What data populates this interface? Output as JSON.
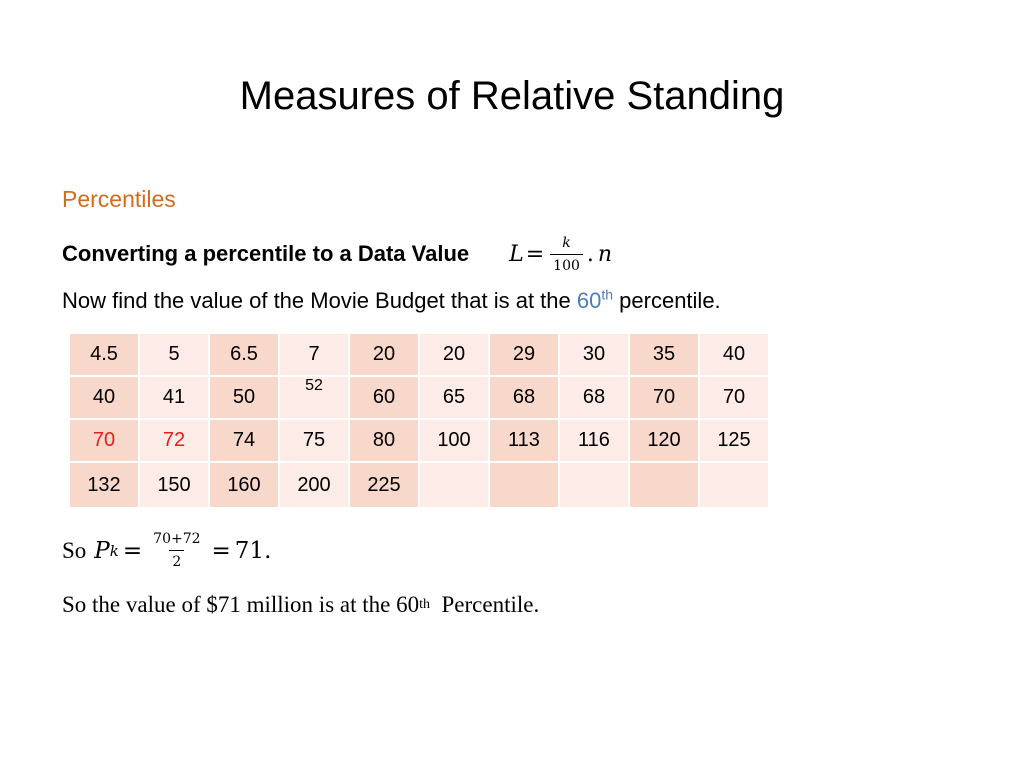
{
  "slide": {
    "title": "Measures of Relative Standing",
    "subtitle": "Percentiles",
    "heading": "Converting a percentile to a Data Value",
    "formula": {
      "lhs": "L",
      "eq": "=",
      "numerator": "k",
      "denominator": "100",
      "dot": ".",
      "var": "n"
    },
    "question": {
      "before": "Now find the value of the Movie Budget that is at the ",
      "percent": "60",
      "sup": "th",
      "after": " percentile."
    },
    "colors": {
      "subtitle": "#d46a20",
      "accent": "#4a7ebb",
      "highlight_red": "#e02020",
      "cell_dark": "#f9d8cc",
      "cell_light": "#fcebe6"
    },
    "table": {
      "rows": [
        [
          "4.5",
          "5",
          "6.5",
          "7",
          "20",
          "20",
          "29",
          "30",
          "35",
          "40"
        ],
        [
          "40",
          "41",
          "50",
          "52",
          "60",
          "65",
          "68",
          "68",
          "70",
          "70"
        ],
        [
          "70",
          "72",
          "74",
          "75",
          "80",
          "100",
          "113",
          "116",
          "120",
          "125"
        ],
        [
          "132",
          "150",
          "160",
          "200",
          "225",
          "",
          "",
          "",
          "",
          ""
        ]
      ]
    },
    "result": {
      "so": "So",
      "p": "P",
      "sub": "k",
      "eq": "=",
      "numerator": "70+72",
      "denominator": "2",
      "eq2": "=",
      "value": "71."
    },
    "conclusion": {
      "before": "So the value of $71 million is at the 60",
      "sup": "th",
      "after": "  Percentile."
    }
  }
}
